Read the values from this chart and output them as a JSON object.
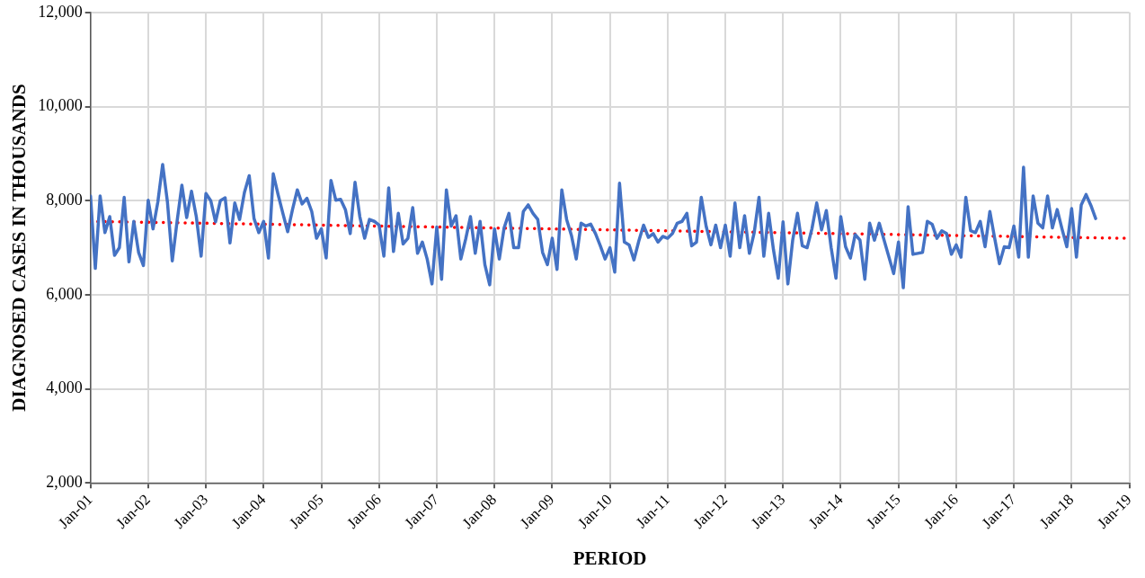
{
  "chart_data": {
    "type": "line",
    "xlabel": "PERIOD",
    "ylabel": "DIAGNOSED CASES IN THOUSANDS",
    "grid": true,
    "marker": "none",
    "xlim": [
      "2001-01",
      "2019-01"
    ],
    "xticks": [
      {
        "value": "2001-01",
        "label": "Jan-01"
      },
      {
        "value": "2002-01",
        "label": "Jan-02"
      },
      {
        "value": "2003-01",
        "label": "Jan-03"
      },
      {
        "value": "2004-01",
        "label": "Jan-04"
      },
      {
        "value": "2005-01",
        "label": "Jan-05"
      },
      {
        "value": "2006-01",
        "label": "Jan-06"
      },
      {
        "value": "2007-01",
        "label": "Jan-07"
      },
      {
        "value": "2008-01",
        "label": "Jan-08"
      },
      {
        "value": "2009-01",
        "label": "Jan-09"
      },
      {
        "value": "2010-01",
        "label": "Jan-10"
      },
      {
        "value": "2011-01",
        "label": "Jan-11"
      },
      {
        "value": "2012-01",
        "label": "Jan-12"
      },
      {
        "value": "2013-01",
        "label": "Jan-13"
      },
      {
        "value": "2014-01",
        "label": "Jan-14"
      },
      {
        "value": "2015-01",
        "label": "Jan-15"
      },
      {
        "value": "2016-01",
        "label": "Jan-16"
      },
      {
        "value": "2017-01",
        "label": "Jan-17"
      },
      {
        "value": "2018-01",
        "label": "Jan-18"
      },
      {
        "value": "2019-01",
        "label": "Jan-19"
      }
    ],
    "ylim": [
      2000,
      12000
    ],
    "yticks": [
      {
        "value": 2000,
        "label": "2,000"
      },
      {
        "value": 4000,
        "label": "4,000"
      },
      {
        "value": 6000,
        "label": "6,000"
      },
      {
        "value": 8000,
        "label": "8,000"
      },
      {
        "value": 10000,
        "label": "10,000"
      },
      {
        "value": 12000,
        "label": "12,000"
      }
    ],
    "series": [
      {
        "color": "#4472c4",
        "line_style": "solid",
        "x": [
          "2001-01",
          "2001-02",
          "2001-03",
          "2001-04",
          "2001-05",
          "2001-06",
          "2001-07",
          "2001-08",
          "2001-09",
          "2001-10",
          "2001-11",
          "2001-12",
          "2002-01",
          "2002-02",
          "2002-03",
          "2002-04",
          "2002-05",
          "2002-06",
          "2002-07",
          "2002-08",
          "2002-09",
          "2002-10",
          "2002-11",
          "2002-12",
          "2003-01",
          "2003-02",
          "2003-03",
          "2003-04",
          "2003-05",
          "2003-06",
          "2003-07",
          "2003-08",
          "2003-09",
          "2003-10",
          "2003-11",
          "2003-12",
          "2004-01",
          "2004-02",
          "2004-03",
          "2004-04",
          "2004-05",
          "2004-06",
          "2004-07",
          "2004-08",
          "2004-09",
          "2004-10",
          "2004-11",
          "2004-12",
          "2005-01",
          "2005-02",
          "2005-03",
          "2005-04",
          "2005-05",
          "2005-06",
          "2005-07",
          "2005-08",
          "2005-09",
          "2005-10",
          "2005-11",
          "2005-12",
          "2006-01",
          "2006-02",
          "2006-03",
          "2006-04",
          "2006-05",
          "2006-06",
          "2006-07",
          "2006-08",
          "2006-09",
          "2006-10",
          "2006-11",
          "2006-12",
          "2007-01",
          "2007-02",
          "2007-03",
          "2007-04",
          "2007-05",
          "2007-06",
          "2007-07",
          "2007-08",
          "2007-09",
          "2007-10",
          "2007-11",
          "2007-12",
          "2008-01",
          "2008-02",
          "2008-03",
          "2008-04",
          "2008-05",
          "2008-06",
          "2008-07",
          "2008-08",
          "2008-09",
          "2008-10",
          "2008-11",
          "2008-12",
          "2009-01",
          "2009-02",
          "2009-03",
          "2009-04",
          "2009-05",
          "2009-06",
          "2009-07",
          "2009-08",
          "2009-09",
          "2009-10",
          "2009-11",
          "2009-12",
          "2010-01",
          "2010-02",
          "2010-03",
          "2010-04",
          "2010-05",
          "2010-06",
          "2010-07",
          "2010-08",
          "2010-09",
          "2010-10",
          "2010-11",
          "2010-12",
          "2011-01",
          "2011-02",
          "2011-03",
          "2011-04",
          "2011-05",
          "2011-06",
          "2011-07",
          "2011-08",
          "2011-09",
          "2011-10",
          "2011-11",
          "2011-12",
          "2012-01",
          "2012-02",
          "2012-03",
          "2012-04",
          "2012-05",
          "2012-06",
          "2012-07",
          "2012-08",
          "2012-09",
          "2012-10",
          "2012-11",
          "2012-12",
          "2013-01",
          "2013-02",
          "2013-03",
          "2013-04",
          "2013-05",
          "2013-06",
          "2013-07",
          "2013-08",
          "2013-09",
          "2013-10",
          "2013-11",
          "2013-12",
          "2014-01",
          "2014-02",
          "2014-03",
          "2014-04",
          "2014-05",
          "2014-06",
          "2014-07",
          "2014-08",
          "2014-09",
          "2014-12",
          "2015-01",
          "2015-02",
          "2015-03",
          "2015-04",
          "2015-05",
          "2015-06",
          "2015-07",
          "2015-08",
          "2015-09",
          "2015-10",
          "2015-11",
          "2015-12",
          "2016-01",
          "2016-02",
          "2016-03",
          "2016-04",
          "2016-05",
          "2016-06",
          "2016-07",
          "2016-08",
          "2016-09",
          "2016-10",
          "2016-11",
          "2016-12",
          "2017-01",
          "2017-02",
          "2017-03",
          "2017-04",
          "2017-05",
          "2017-06",
          "2017-07",
          "2017-08",
          "2017-09",
          "2017-10",
          "2017-11",
          "2017-12",
          "2018-01",
          "2018-02",
          "2018-03",
          "2018-04",
          "2018-05",
          "2018-06"
        ],
        "values": [
          8100,
          6560,
          8100,
          7320,
          7660,
          6840,
          7000,
          8070,
          6700,
          7560,
          6900,
          6620,
          8010,
          7400,
          7970,
          8770,
          7970,
          6720,
          7560,
          8330,
          7640,
          8200,
          7660,
          6820,
          8150,
          8000,
          7550,
          8000,
          8060,
          7100,
          7950,
          7600,
          8170,
          8530,
          7620,
          7320,
          7560,
          6780,
          8570,
          8130,
          7730,
          7340,
          7810,
          8230,
          7930,
          8050,
          7770,
          7200,
          7400,
          6780,
          8430,
          8010,
          8030,
          7810,
          7300,
          8390,
          7660,
          7200,
          7600,
          7560,
          7480,
          6820,
          8270,
          6920,
          7730,
          7080,
          7200,
          7850,
          6880,
          7120,
          6760,
          6230,
          7440,
          6330,
          8230,
          7460,
          7680,
          6760,
          7180,
          7660,
          6880,
          7560,
          6640,
          6210,
          7400,
          6760,
          7420,
          7730,
          7000,
          7000,
          7770,
          7910,
          7730,
          7600,
          6900,
          6640,
          7200,
          6540,
          8230,
          7600,
          7260,
          6760,
          7520,
          7460,
          7500,
          7300,
          7040,
          6760,
          7000,
          6480,
          8370,
          7120,
          7060,
          6740,
          7140,
          7480,
          7220,
          7300,
          7120,
          7240,
          7200,
          7300,
          7520,
          7560,
          7730,
          7040,
          7120,
          8070,
          7460,
          7060,
          7480,
          7000,
          7480,
          6820,
          7950,
          7000,
          7680,
          6880,
          7320,
          8070,
          6820,
          7730,
          6960,
          6350,
          7550,
          6230,
          7160,
          7730,
          7040,
          7000,
          7400,
          7950,
          7380,
          7790,
          7000,
          6350,
          7660,
          7020,
          6780,
          7280,
          7160,
          6330,
          7520,
          7160,
          7520,
          6450,
          7120,
          6150,
          7870,
          6860,
          6880,
          6900,
          7560,
          7500,
          7200,
          7360,
          7300,
          6860,
          7060,
          6800,
          8070,
          7360,
          7320,
          7560,
          7020,
          7770,
          7200,
          6660,
          7020,
          7000,
          7460,
          6800,
          8710,
          6800,
          8100,
          7520,
          7420,
          8100,
          7420,
          7810,
          7400,
          7020,
          7830,
          6800,
          7910,
          8130,
          7900,
          7620
        ]
      },
      {
        "color": "#ff0000",
        "line_style": "dotted",
        "x": [
          "2001-01",
          "2018-12"
        ],
        "values": [
          7560,
          7200
        ]
      }
    ]
  }
}
